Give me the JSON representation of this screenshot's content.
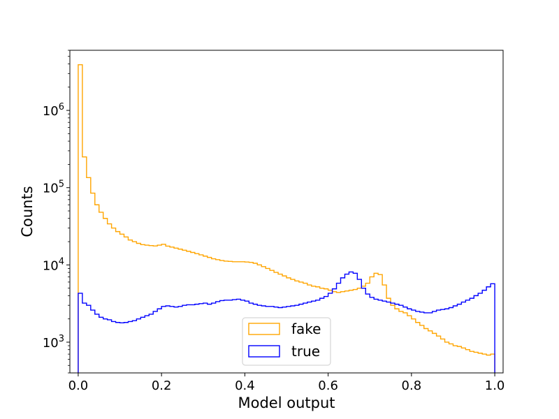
{
  "chart_data": {
    "type": "histogram",
    "xlabel": "Model output",
    "ylabel": "Counts",
    "yscale": "log",
    "xlim": [
      -0.02,
      1.02
    ],
    "ylim": [
      400,
      6000000
    ],
    "bins": 100,
    "bin_range": [
      0,
      1
    ],
    "x_ticks": [
      {
        "value": 0.0,
        "label": "0.0"
      },
      {
        "value": 0.2,
        "label": "0.2"
      },
      {
        "value": 0.4,
        "label": "0.4"
      },
      {
        "value": 0.6,
        "label": "0.6"
      },
      {
        "value": 0.8,
        "label": "0.8"
      },
      {
        "value": 1.0,
        "label": "1.0"
      }
    ],
    "y_ticks": [
      {
        "value": 1000,
        "base": "10",
        "exp": "3"
      },
      {
        "value": 10000,
        "base": "10",
        "exp": "4"
      },
      {
        "value": 100000,
        "base": "10",
        "exp": "5"
      },
      {
        "value": 1000000,
        "base": "10",
        "exp": "6"
      }
    ],
    "legend": {
      "position": "lower-center"
    },
    "series": [
      {
        "name": "fake",
        "color": "#ffa500",
        "values": [
          3900000,
          250000,
          135000,
          85000,
          60000,
          48000,
          40000,
          34000,
          30000,
          27000,
          25000,
          23000,
          21000,
          20000,
          19000,
          18300,
          18000,
          17800,
          17600,
          18000,
          18500,
          17500,
          17000,
          16500,
          16000,
          15500,
          15000,
          14500,
          14000,
          13500,
          13000,
          12500,
          12000,
          11700,
          11400,
          11200,
          11100,
          11000,
          11000,
          11000,
          10900,
          10800,
          10500,
          10000,
          9500,
          9000,
          8500,
          8000,
          7600,
          7200,
          6800,
          6500,
          6200,
          6000,
          5800,
          5500,
          5300,
          5200,
          5000,
          4900,
          4700,
          4500,
          4400,
          4500,
          4600,
          4700,
          4800,
          5000,
          5300,
          5800,
          7000,
          7800,
          7500,
          5500,
          3700,
          3000,
          2700,
          2500,
          2400,
          2200,
          2000,
          1800,
          1650,
          1500,
          1400,
          1300,
          1200,
          1100,
          1000,
          950,
          900,
          880,
          840,
          800,
          760,
          740,
          720,
          700,
          680,
          700
        ]
      },
      {
        "name": "true",
        "color": "#0000ff",
        "values": [
          4300,
          3200,
          3000,
          2600,
          2300,
          2100,
          2000,
          1950,
          1850,
          1800,
          1780,
          1800,
          1850,
          1900,
          2000,
          2100,
          2200,
          2300,
          2500,
          2700,
          2900,
          2950,
          2900,
          2850,
          2900,
          3000,
          3050,
          3050,
          3100,
          3150,
          3200,
          3100,
          3200,
          3350,
          3450,
          3500,
          3500,
          3550,
          3600,
          3500,
          3400,
          3200,
          3100,
          3000,
          2950,
          2900,
          2900,
          2850,
          2800,
          2850,
          2900,
          2950,
          3000,
          3100,
          3200,
          3300,
          3400,
          3500,
          3700,
          3900,
          4300,
          4900,
          5800,
          6800,
          7600,
          8100,
          7800,
          6500,
          5000,
          4200,
          3800,
          3600,
          3500,
          3400,
          3300,
          3200,
          3100,
          3000,
          2850,
          2700,
          2600,
          2500,
          2450,
          2400,
          2400,
          2500,
          2600,
          2650,
          2700,
          2800,
          2950,
          3100,
          3300,
          3500,
          3700,
          4000,
          4300,
          4700,
          5200,
          5700
        ]
      }
    ]
  }
}
